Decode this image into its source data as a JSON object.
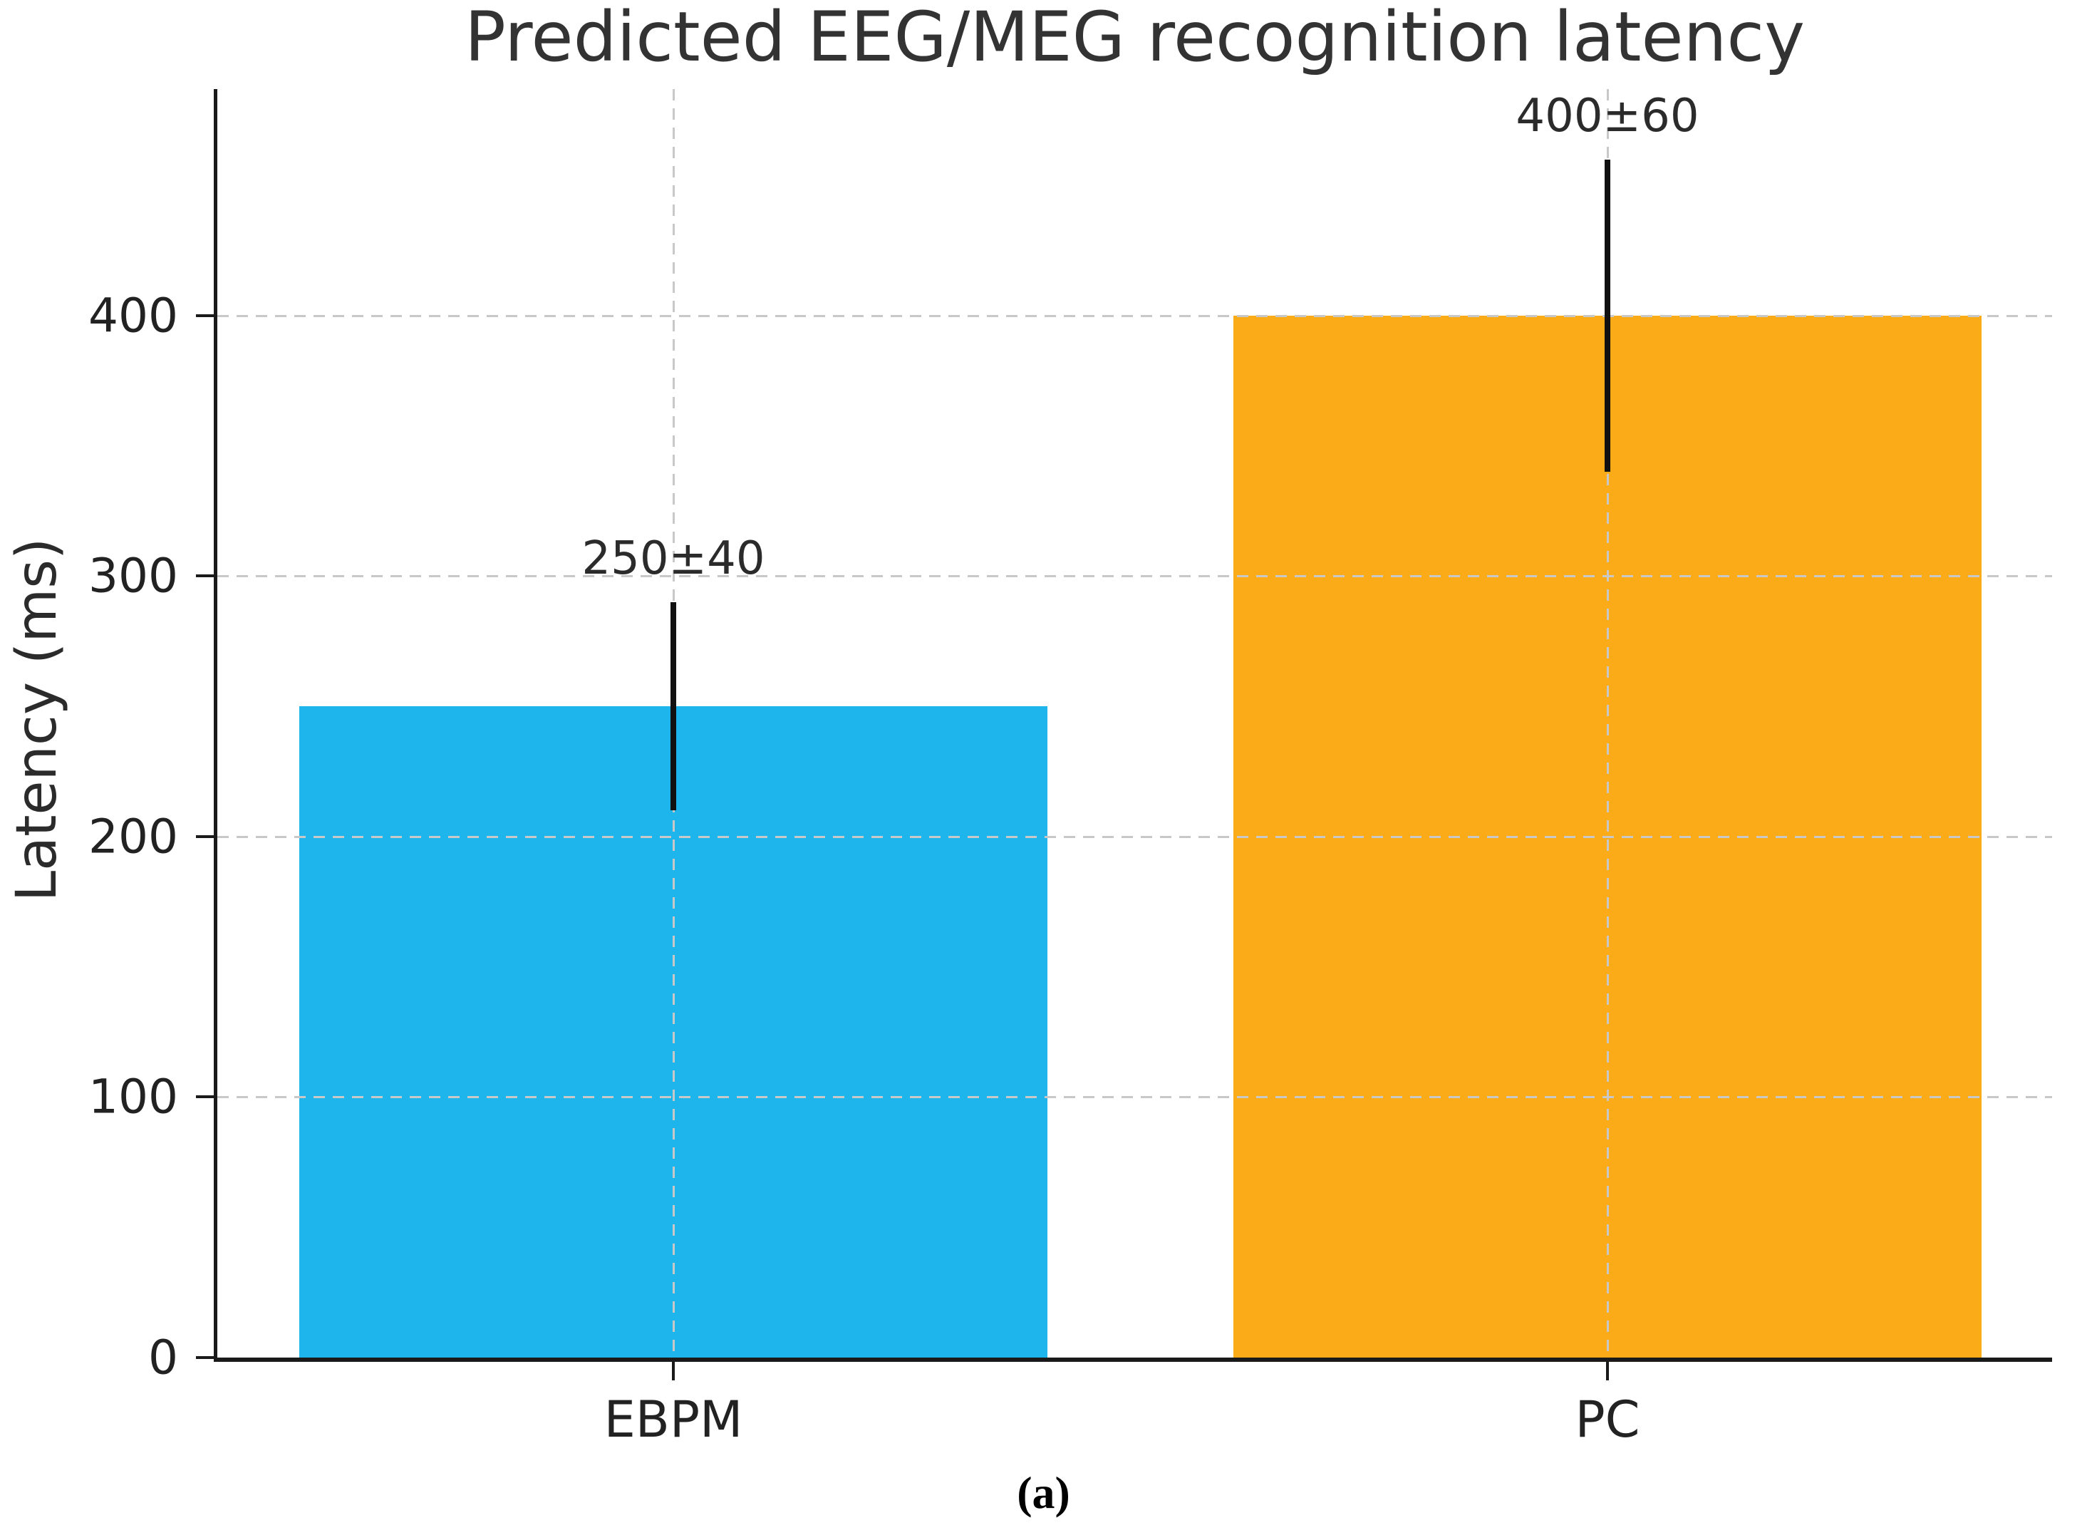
{
  "figure": {
    "title": "Predicted EEG/MEG recognition latency",
    "caption_label": "(a)"
  },
  "chart_data": {
    "type": "bar",
    "title": "Predicted EEG/MEG recognition latency",
    "categories": [
      "EBPM",
      "PC"
    ],
    "values": [
      250,
      400
    ],
    "errors": [
      40,
      60
    ],
    "bar_labels": [
      "250±40",
      "400±60"
    ],
    "bar_colors": [
      "#1db5ec",
      "#fcab18"
    ],
    "error_bar_color": "#111111",
    "xlabel": "",
    "ylabel": "Latency (ms)",
    "ylim": [
      0,
      487
    ],
    "yticks": [
      0,
      100,
      200,
      300,
      400
    ],
    "grid": {
      "horizontal_at": [
        100,
        200,
        300,
        400
      ],
      "vertical_at_category_centers": true,
      "style": "dashed",
      "color": "#c8c8c8",
      "drawn_above_bars": true
    },
    "legend_position": "none",
    "caption": "(a)"
  }
}
